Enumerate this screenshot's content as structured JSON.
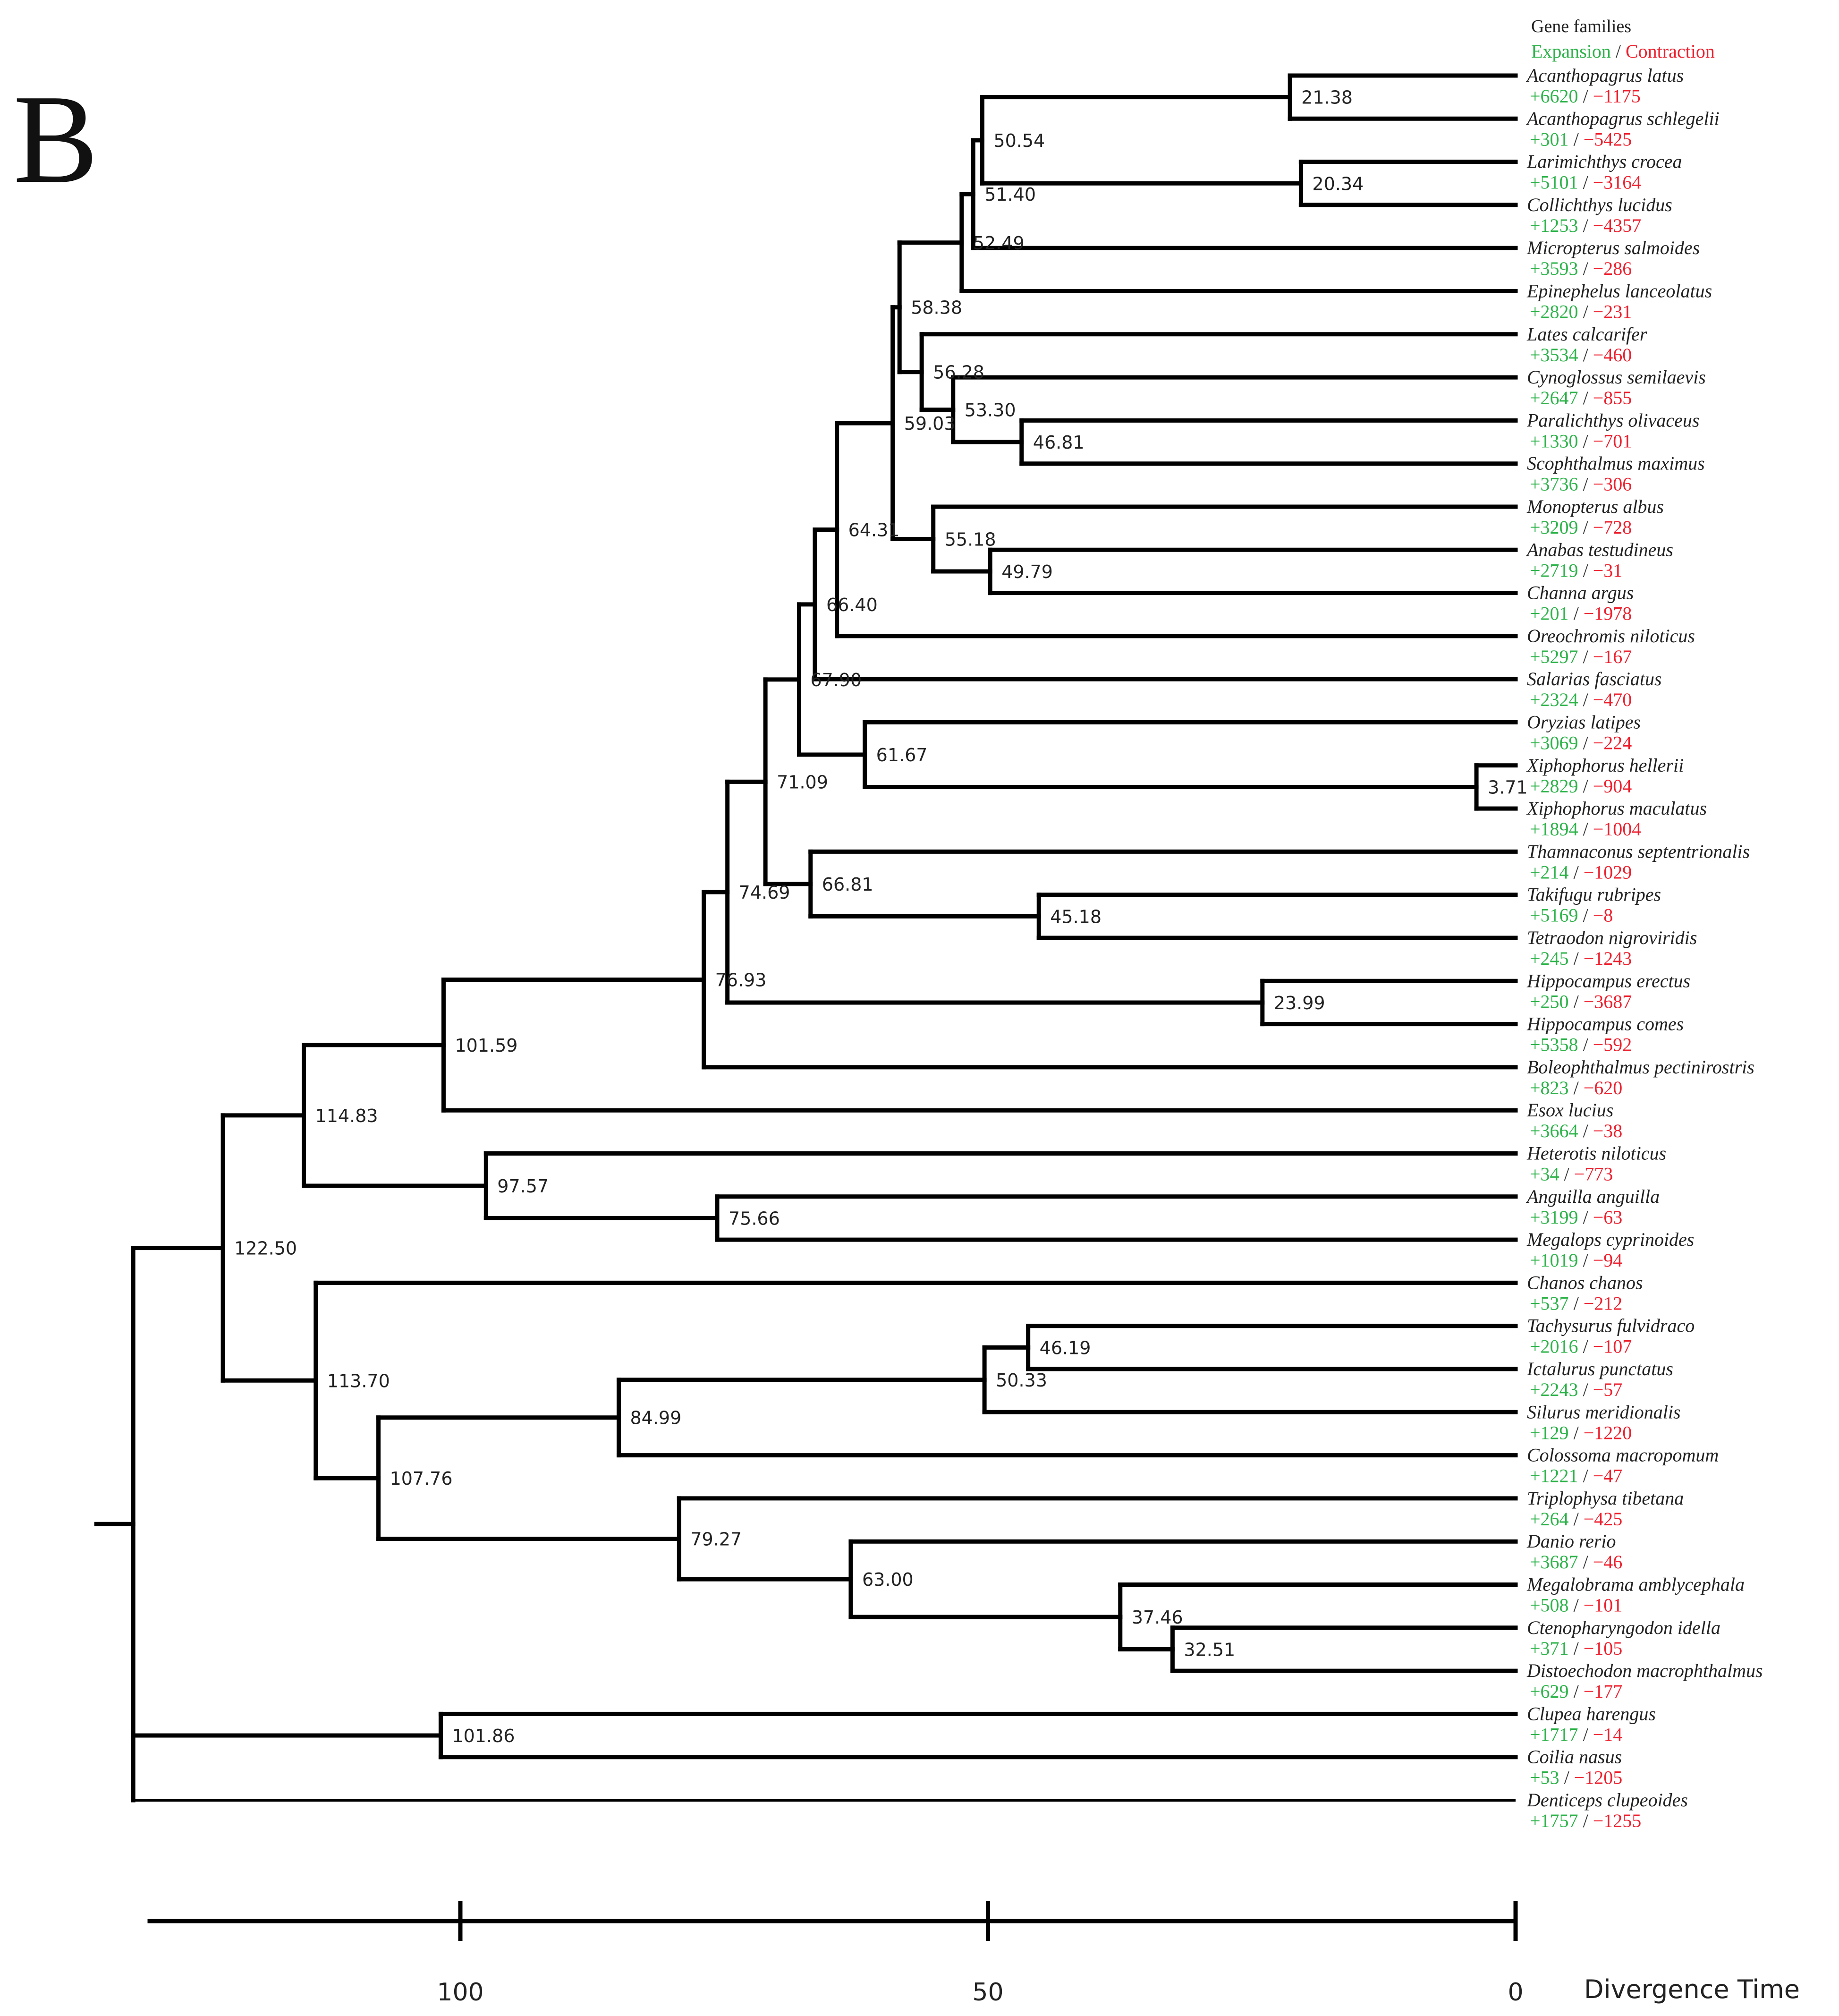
{
  "panel_label": "B",
  "legend": {
    "title": "Gene families",
    "expansion": "Expansion",
    "separator": " / ",
    "contraction": "Contraction",
    "colors": {
      "expansion": "#2db34a",
      "contraction": "#ee1f2d"
    }
  },
  "axis": {
    "title": "Divergence Time",
    "ticks": [
      100,
      50,
      0
    ],
    "range": [
      130,
      0
    ]
  },
  "tree": {
    "taxa": [
      {
        "name": "Acanthopagrus latus",
        "exp": "+6620",
        "con": "−1175"
      },
      {
        "name": "Acanthopagrus schlegelii",
        "exp": "+301",
        "con": "−5425"
      },
      {
        "name": "Larimichthys crocea",
        "exp": "+5101",
        "con": "−3164"
      },
      {
        "name": "Collichthys lucidus",
        "exp": "+1253",
        "con": "−4357"
      },
      {
        "name": "Micropterus salmoides",
        "exp": "+3593",
        "con": "−286"
      },
      {
        "name": "Epinephelus lanceolatus",
        "exp": "+2820",
        "con": "−231"
      },
      {
        "name": "Lates calcarifer",
        "exp": "+3534",
        "con": "−460"
      },
      {
        "name": "Cynoglossus semilaevis",
        "exp": "+2647",
        "con": "−855"
      },
      {
        "name": "Paralichthys olivaceus",
        "exp": "+1330",
        "con": "−701"
      },
      {
        "name": "Scophthalmus maximus",
        "exp": "+3736",
        "con": "−306"
      },
      {
        "name": "Monopterus albus",
        "exp": "+3209",
        "con": "−728"
      },
      {
        "name": "Anabas testudineus",
        "exp": "+2719",
        "con": "−31"
      },
      {
        "name": "Channa argus",
        "exp": "+201",
        "con": "−1978"
      },
      {
        "name": "Oreochromis niloticus",
        "exp": "+5297",
        "con": "−167"
      },
      {
        "name": "Salarias fasciatus",
        "exp": "+2324",
        "con": "−470"
      },
      {
        "name": "Oryzias latipes",
        "exp": "+3069",
        "con": "−224"
      },
      {
        "name": "Xiphophorus hellerii",
        "exp": "+2829",
        "con": "−904"
      },
      {
        "name": "Xiphophorus maculatus",
        "exp": "+1894",
        "con": "−1004"
      },
      {
        "name": "Thamnaconus septentrionalis",
        "exp": "+214",
        "con": "−1029"
      },
      {
        "name": "Takifugu rubripes",
        "exp": "+5169",
        "con": "−8"
      },
      {
        "name": "Tetraodon nigroviridis",
        "exp": "+245",
        "con": "−1243"
      },
      {
        "name": "Hippocampus erectus",
        "exp": "+250",
        "con": "−3687"
      },
      {
        "name": "Hippocampus comes",
        "exp": "+5358",
        "con": "−592"
      },
      {
        "name": "Boleophthalmus pectinirostris",
        "exp": "+823",
        "con": "−620"
      },
      {
        "name": "Esox lucius",
        "exp": "+3664",
        "con": "−38"
      },
      {
        "name": "Heterotis niloticus",
        "exp": "+34",
        "con": "−773"
      },
      {
        "name": "Anguilla anguilla",
        "exp": "+3199",
        "con": "−63"
      },
      {
        "name": "Megalops cyprinoides",
        "exp": "+1019",
        "con": "−94"
      },
      {
        "name": "Chanos chanos",
        "exp": "+537",
        "con": "−212"
      },
      {
        "name": "Tachysurus fulvidraco",
        "exp": "+2016",
        "con": "−107"
      },
      {
        "name": "Ictalurus punctatus",
        "exp": "+2243",
        "con": "−57"
      },
      {
        "name": "Silurus meridionalis",
        "exp": "+129",
        "con": "−1220"
      },
      {
        "name": "Colossoma macropomum",
        "exp": "+1221",
        "con": "−47"
      },
      {
        "name": "Triplophysa tibetana",
        "exp": "+264",
        "con": "−425"
      },
      {
        "name": "Danio rerio",
        "exp": "+3687",
        "con": "−46"
      },
      {
        "name": "Megalobrama amblycephala",
        "exp": "+508",
        "con": "−101"
      },
      {
        "name": "Ctenopharyngodon idella",
        "exp": "+371",
        "con": "−105"
      },
      {
        "name": "Distoechodon macrophthalmus",
        "exp": "+629",
        "con": "−177"
      },
      {
        "name": "Clupea harengus",
        "exp": "+1717",
        "con": "−14"
      },
      {
        "name": "Coilia nasus",
        "exp": "+53",
        "con": "−1205"
      },
      {
        "name": "Denticeps clupeoides",
        "exp": "+1757",
        "con": "−1255"
      }
    ],
    "nodes": [
      {
        "id": "n_acanth",
        "age": 21.38,
        "label": "21.38",
        "children": [
          0,
          1
        ]
      },
      {
        "id": "n_sciaen",
        "age": 20.34,
        "label": "20.34",
        "children": [
          2,
          3
        ]
      },
      {
        "id": "n_5054",
        "age": 50.54,
        "label": "50.54",
        "children": [
          "n_acanth",
          "n_sciaen"
        ]
      },
      {
        "id": "n_5140",
        "age": 51.4,
        "label": "51.40",
        "children": [
          "n_5054",
          4
        ]
      },
      {
        "id": "n_5249",
        "age": 52.49,
        "label": "52.49",
        "children": [
          "n_5140",
          5
        ]
      },
      {
        "id": "n_4681",
        "age": 46.81,
        "label": "46.81",
        "children": [
          8,
          9
        ]
      },
      {
        "id": "n_5330",
        "age": 53.3,
        "label": "53.30",
        "children": [
          7,
          "n_4681"
        ]
      },
      {
        "id": "n_5628",
        "age": 56.28,
        "label": "56.28",
        "children": [
          6,
          "n_5330"
        ]
      },
      {
        "id": "n_5838",
        "age": 58.38,
        "label": "58.38",
        "children": [
          "n_5249",
          "n_5628"
        ]
      },
      {
        "id": "n_4979",
        "age": 49.79,
        "label": "49.79",
        "children": [
          11,
          12
        ]
      },
      {
        "id": "n_5518",
        "age": 55.18,
        "label": "55.18",
        "children": [
          10,
          "n_4979"
        ]
      },
      {
        "id": "n_5903",
        "age": 59.03,
        "label": "59.03",
        "children": [
          "n_5838",
          "n_5518"
        ]
      },
      {
        "id": "n_6431",
        "age": 64.31,
        "label": "64.31",
        "children": [
          "n_5903",
          13
        ]
      },
      {
        "id": "n_6640",
        "age": 66.4,
        "label": "66.40",
        "children": [
          "n_6431",
          14
        ]
      },
      {
        "id": "n_0371",
        "age": 3.71,
        "label": "3.71",
        "children": [
          16,
          17
        ]
      },
      {
        "id": "n_6167",
        "age": 61.67,
        "label": "61.67",
        "children": [
          15,
          "n_0371"
        ]
      },
      {
        "id": "n_6790",
        "age": 67.9,
        "label": "67.90",
        "children": [
          "n_6640",
          "n_6167"
        ]
      },
      {
        "id": "n_4518",
        "age": 45.18,
        "label": "45.18",
        "children": [
          19,
          20
        ]
      },
      {
        "id": "n_6681",
        "age": 66.81,
        "label": "66.81",
        "children": [
          18,
          "n_4518"
        ]
      },
      {
        "id": "n_7109",
        "age": 71.09,
        "label": "71.09",
        "children": [
          "n_6790",
          "n_6681"
        ]
      },
      {
        "id": "n_2399",
        "age": 23.99,
        "label": "23.99",
        "children": [
          21,
          22
        ]
      },
      {
        "id": "n_7469",
        "age": 74.69,
        "label": "74.69",
        "children": [
          "n_7109",
          "n_2399"
        ]
      },
      {
        "id": "n_7693",
        "age": 76.93,
        "label": "76.93",
        "children": [
          "n_7469",
          23
        ]
      },
      {
        "id": "n_10159",
        "age": 101.59,
        "label": "101.59",
        "children": [
          "n_7693",
          24
        ]
      },
      {
        "id": "n_7566",
        "age": 75.66,
        "label": "75.66",
        "children": [
          26,
          27
        ]
      },
      {
        "id": "n_9757",
        "age": 97.57,
        "label": "97.57",
        "children": [
          25,
          "n_7566"
        ]
      },
      {
        "id": "n_11483",
        "age": 114.83,
        "label": "114.83",
        "children": [
          "n_10159",
          "n_9757"
        ]
      },
      {
        "id": "n_4619",
        "age": 46.19,
        "label": "46.19",
        "children": [
          29,
          30
        ]
      },
      {
        "id": "n_5033",
        "age": 50.33,
        "label": "50.33",
        "children": [
          "n_4619",
          31
        ]
      },
      {
        "id": "n_8499",
        "age": 84.99,
        "label": "84.99",
        "children": [
          "n_5033",
          32
        ]
      },
      {
        "id": "n_3251",
        "age": 32.51,
        "label": "32.51",
        "children": [
          36,
          37
        ]
      },
      {
        "id": "n_3746",
        "age": 37.46,
        "label": "37.46",
        "children": [
          35,
          "n_3251"
        ]
      },
      {
        "id": "n_6300",
        "age": 63.0,
        "label": "63.00",
        "children": [
          34,
          "n_3746"
        ]
      },
      {
        "id": "n_7927",
        "age": 79.27,
        "label": "79.27",
        "children": [
          33,
          "n_6300"
        ]
      },
      {
        "id": "n_10776",
        "age": 107.76,
        "label": "107.76",
        "children": [
          "n_8499",
          "n_7927"
        ]
      },
      {
        "id": "n_11370",
        "age": 113.7,
        "label": "113.70",
        "children": [
          28,
          "n_10776"
        ]
      },
      {
        "id": "n_12250",
        "age": 122.5,
        "label": "122.50",
        "children": [
          "n_11483",
          "n_11370"
        ]
      },
      {
        "id": "n_10186",
        "age": 101.86,
        "label": "101.86",
        "children": [
          38,
          39
        ]
      },
      {
        "id": "n_root",
        "age": 131,
        "label": "",
        "children": [
          "n_12250",
          "n_10186",
          40
        ]
      }
    ]
  }
}
